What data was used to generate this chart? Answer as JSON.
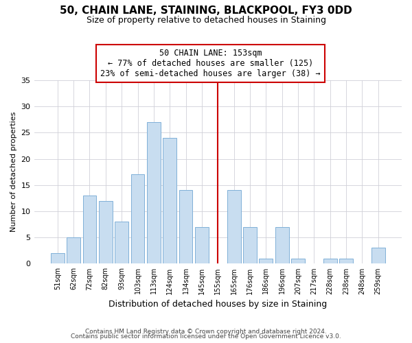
{
  "title": "50, CHAIN LANE, STAINING, BLACKPOOL, FY3 0DD",
  "subtitle": "Size of property relative to detached houses in Staining",
  "xlabel": "Distribution of detached houses by size in Staining",
  "ylabel": "Number of detached properties",
  "bar_labels": [
    "51sqm",
    "62sqm",
    "72sqm",
    "82sqm",
    "93sqm",
    "103sqm",
    "113sqm",
    "124sqm",
    "134sqm",
    "145sqm",
    "155sqm",
    "165sqm",
    "176sqm",
    "186sqm",
    "196sqm",
    "207sqm",
    "217sqm",
    "228sqm",
    "238sqm",
    "248sqm",
    "259sqm"
  ],
  "bar_values": [
    2,
    5,
    13,
    12,
    8,
    17,
    27,
    24,
    14,
    7,
    0,
    14,
    7,
    1,
    7,
    1,
    0,
    1,
    1,
    0,
    3
  ],
  "bar_color": "#c8ddf0",
  "bar_edge_color": "#7fb0d8",
  "vline_x_idx": 10,
  "vline_color": "#cc0000",
  "annotation_title": "50 CHAIN LANE: 153sqm",
  "annotation_line1": "← 77% of detached houses are smaller (125)",
  "annotation_line2": "23% of semi-detached houses are larger (38) →",
  "annotation_box_color": "#ffffff",
  "annotation_box_edge": "#cc0000",
  "ylim": [
    0,
    35
  ],
  "yticks": [
    0,
    5,
    10,
    15,
    20,
    25,
    30,
    35
  ],
  "footer1": "Contains HM Land Registry data © Crown copyright and database right 2024.",
  "footer2": "Contains public sector information licensed under the Open Government Licence v3.0.",
  "background_color": "#ffffff",
  "grid_color": "#d0d0d8"
}
